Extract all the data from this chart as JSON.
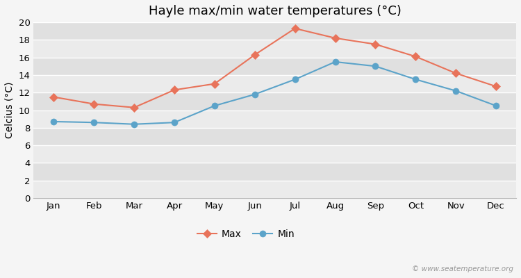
{
  "title": "Hayle max/min water temperatures (°C)",
  "ylabel": "Celcius (°C)",
  "months": [
    "Jan",
    "Feb",
    "Mar",
    "Apr",
    "May",
    "Jun",
    "Jul",
    "Aug",
    "Sep",
    "Oct",
    "Nov",
    "Dec"
  ],
  "max_temps": [
    11.5,
    10.7,
    10.3,
    12.3,
    13.0,
    16.3,
    19.3,
    18.2,
    17.5,
    16.1,
    14.2,
    12.7
  ],
  "min_temps": [
    8.7,
    8.6,
    8.4,
    8.6,
    10.5,
    11.8,
    13.5,
    15.5,
    15.0,
    13.5,
    12.2,
    10.5
  ],
  "max_color": "#e8735a",
  "min_color": "#5ba3c9",
  "outer_bg": "#f5f5f5",
  "plot_bg_light": "#ebebeb",
  "plot_bg_dark": "#e0e0e0",
  "grid_color": "#ffffff",
  "ylim": [
    0,
    20
  ],
  "yticks": [
    0,
    2,
    4,
    6,
    8,
    10,
    12,
    14,
    16,
    18,
    20
  ],
  "legend_labels": [
    "Max",
    "Min"
  ],
  "watermark": "© www.seatemperature.org",
  "title_fontsize": 13,
  "label_fontsize": 10,
  "tick_fontsize": 9.5,
  "legend_fontsize": 10
}
